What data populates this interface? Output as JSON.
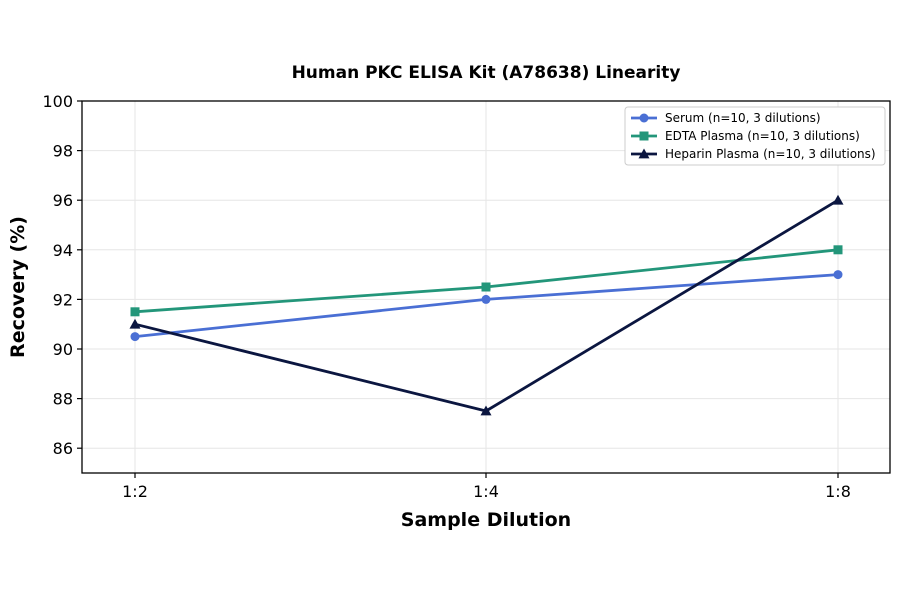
{
  "chart_data": {
    "type": "line",
    "title": "Human PKC ELISA Kit (A78638) Linearity",
    "xlabel": "Sample Dilution",
    "ylabel": "Recovery (%)",
    "categories": [
      "1:2",
      "1:4",
      "1:8"
    ],
    "ylim": [
      85,
      100
    ],
    "yticks": [
      86,
      88,
      90,
      92,
      94,
      96,
      98,
      100
    ],
    "grid": true,
    "legend_position": "top-right",
    "series": [
      {
        "name": "Serum (n=10, 3 dilutions)",
        "values": [
          90.5,
          92.0,
          93.0
        ],
        "color": "#4a6fd4",
        "marker": "circle"
      },
      {
        "name": "EDTA Plasma (n=10, 3 dilutions)",
        "values": [
          91.5,
          92.5,
          94.0
        ],
        "color": "#23967a",
        "marker": "square"
      },
      {
        "name": "Heparin Plasma (n=10, 3 dilutions)",
        "values": [
          91.0,
          87.5,
          96.0
        ],
        "color": "#0b1640",
        "marker": "triangle"
      }
    ]
  }
}
